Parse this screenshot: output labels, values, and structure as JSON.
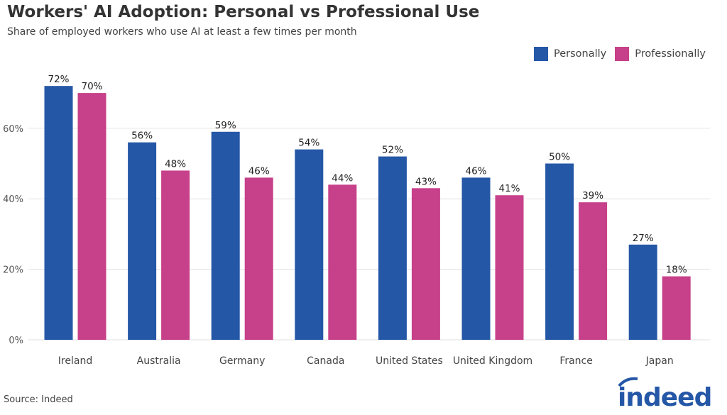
{
  "chart_data": {
    "type": "bar",
    "title": "Workers' AI Adoption: Personal vs Professional Use",
    "subtitle": "Share of employed workers who use AI at least a few times per month",
    "categories": [
      "Ireland",
      "Australia",
      "Germany",
      "Canada",
      "United States",
      "United Kingdom",
      "France",
      "Japan"
    ],
    "series": [
      {
        "name": "Personally",
        "color": "#2557a7",
        "values": [
          72,
          56,
          59,
          54,
          52,
          46,
          50,
          27
        ]
      },
      {
        "name": "Professionally",
        "color": "#c7408a",
        "values": [
          70,
          48,
          46,
          44,
          43,
          41,
          39,
          18
        ]
      }
    ],
    "ylim": [
      0,
      75
    ],
    "yticks": [
      0,
      20,
      40,
      60
    ],
    "ytick_format": "%",
    "grid": true,
    "legend": "top-right",
    "source": "Source: Indeed"
  },
  "logo": {
    "text": "indeed",
    "color": "#2557a7"
  }
}
